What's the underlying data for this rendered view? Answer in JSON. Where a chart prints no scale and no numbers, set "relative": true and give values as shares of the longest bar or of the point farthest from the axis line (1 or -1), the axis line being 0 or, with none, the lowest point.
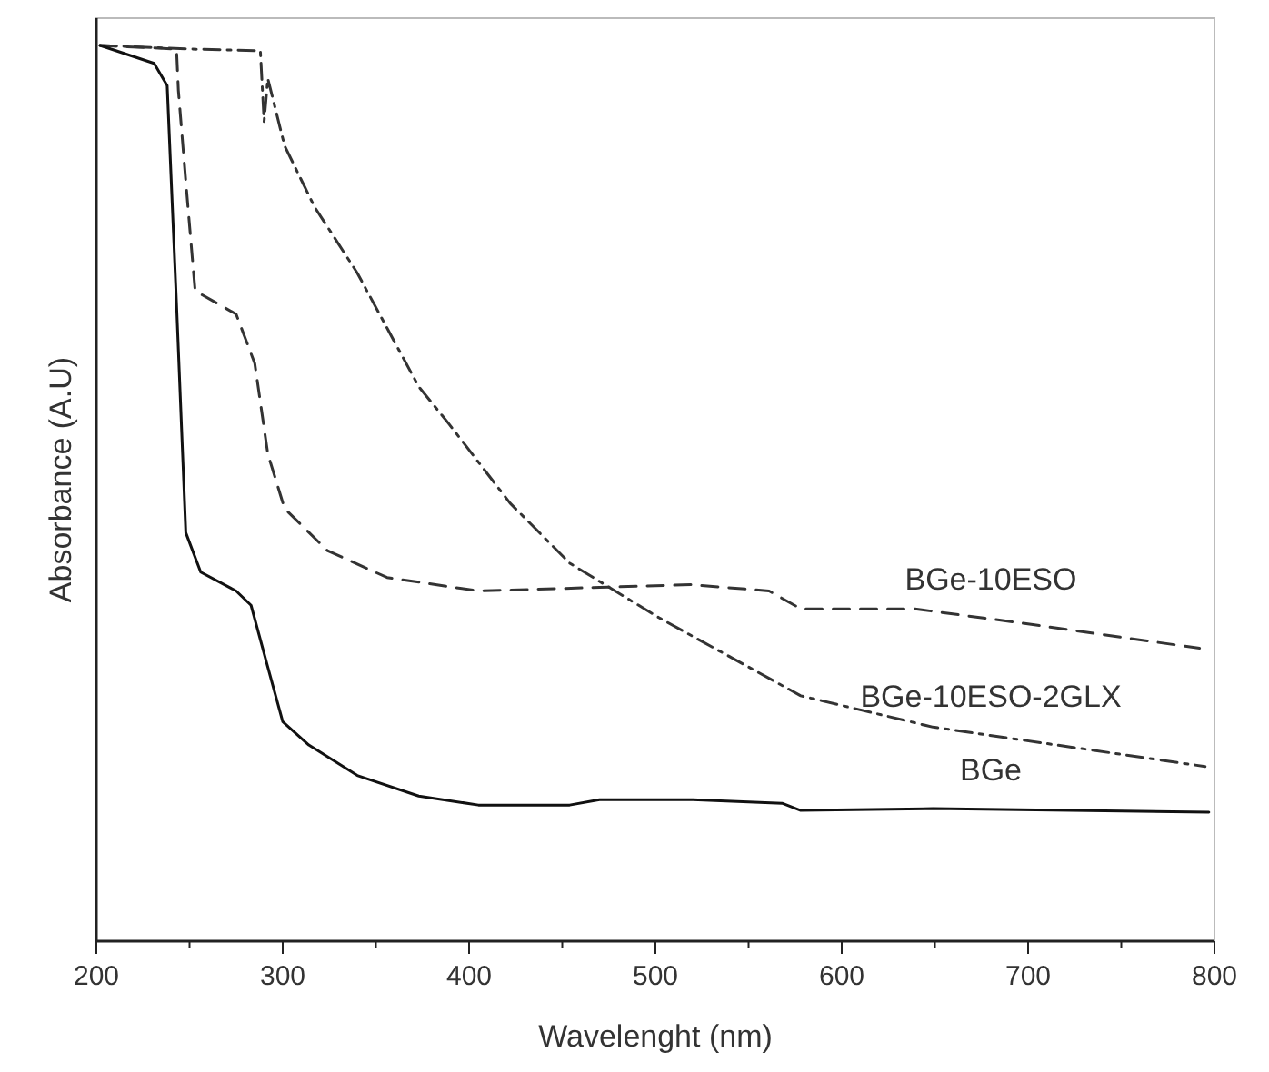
{
  "chart_data": {
    "type": "line",
    "relative": true,
    "xlabel": "Wavelenght (nm)",
    "ylabel": "Absorbance (A.U)",
    "xlim": [
      200,
      800
    ],
    "xticks": [
      200,
      {
        "value": 250,
        "label": null
      },
      300,
      {
        "value": 350,
        "label": null
      },
      400,
      {
        "value": 450,
        "label": null
      },
      500,
      {
        "value": 550,
        "label": null
      },
      600,
      {
        "value": 650,
        "label": null
      },
      700,
      {
        "value": 750,
        "label": null
      },
      800
    ],
    "grid": false,
    "series": [
      {
        "name": "BGe-10ESO",
        "color": "#333333",
        "line_style": "dashed",
        "x": [
          202,
          243,
          244,
          248,
          253,
          275,
          285,
          292,
          301,
          324,
          356,
          405,
          470,
          519,
          561,
          578,
          639,
          697,
          792
        ],
        "values": [
          1.0,
          0.996,
          0.95,
          0.848,
          0.726,
          0.7,
          0.645,
          0.544,
          0.483,
          0.436,
          0.406,
          0.391,
          0.395,
          0.398,
          0.391,
          0.371,
          0.371,
          0.355,
          0.327
        ]
      },
      {
        "name": "BGe-10ESO-2GLX",
        "color": "#333333",
        "line_style": "dashdot",
        "x": [
          202,
          250,
          288,
          290,
          292,
          301,
          317,
          340,
          373,
          389,
          422,
          454,
          502,
          578,
          649,
          795
        ],
        "values": [
          1.0,
          0.996,
          0.994,
          0.915,
          0.963,
          0.888,
          0.82,
          0.746,
          0.619,
          0.578,
          0.489,
          0.422,
          0.361,
          0.274,
          0.239,
          0.195
        ]
      },
      {
        "name": "BGe",
        "color": "#111111",
        "line_style": "solid",
        "x": [
          202,
          231,
          238,
          243,
          248,
          256,
          275,
          283,
          292,
          300,
          314,
          340,
          373,
          405,
          454,
          470,
          519,
          568,
          578,
          649,
          797
        ],
        "values": [
          1.0,
          0.98,
          0.955,
          0.712,
          0.456,
          0.412,
          0.391,
          0.375,
          0.306,
          0.245,
          0.219,
          0.185,
          0.162,
          0.152,
          0.152,
          0.158,
          0.158,
          0.154,
          0.146,
          0.148,
          0.144
        ]
      }
    ]
  }
}
